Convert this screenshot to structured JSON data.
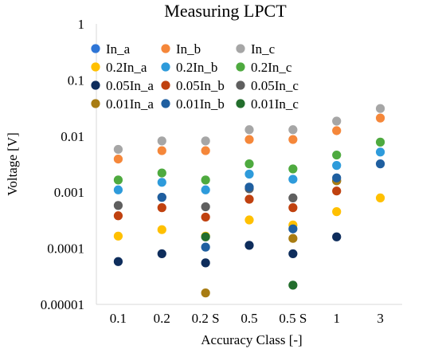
{
  "chart_data": {
    "type": "scatter",
    "title": "Measuring LPCT",
    "xlabel": "Accuracy Class [-]",
    "ylabel": "Voltage [V]",
    "y_scale": "log",
    "ylim": [
      1e-05,
      1
    ],
    "y_ticks": [
      "0.00001",
      "0.0001",
      "0.001",
      "0.01",
      "0.1",
      "1"
    ],
    "categories": [
      "0.1",
      "0.2",
      "0.2 S",
      "0.5",
      "0.5 S",
      "1",
      "3"
    ],
    "grid": false,
    "legend_position": "top-left",
    "series": [
      {
        "name": "In_a",
        "color": "#2E75D6",
        "values": [
          null,
          null,
          null,
          null,
          null,
          null,
          null
        ]
      },
      {
        "name": "In_b",
        "color": "#F5873A",
        "values": [
          0.0039,
          0.0055,
          0.0055,
          0.0087,
          0.0087,
          0.0125,
          0.021
        ]
      },
      {
        "name": "In_c",
        "color": "#A6A6A6",
        "values": [
          0.0058,
          0.0082,
          0.0082,
          0.013,
          0.013,
          0.0185,
          0.031
        ]
      },
      {
        "name": "0.2In_a",
        "color": "#FFC000",
        "values": [
          0.000165,
          0.000215,
          0.000165,
          0.00032,
          0.00026,
          0.00045,
          0.00079
        ]
      },
      {
        "name": "0.2In_b",
        "color": "#2E9BDB",
        "values": [
          0.0011,
          0.0015,
          0.0011,
          0.0021,
          0.0017,
          0.003,
          0.0052
        ]
      },
      {
        "name": "0.2In_c",
        "color": "#4EAA3F",
        "values": [
          0.00165,
          0.0022,
          0.00165,
          0.0032,
          0.0026,
          0.0046,
          0.0078
        ]
      },
      {
        "name": "0.05In_a",
        "color": "#0E2D5C",
        "values": [
          5.8e-05,
          8e-05,
          5.5e-05,
          0.000113,
          8e-05,
          0.00016,
          null
        ]
      },
      {
        "name": "0.05In_b",
        "color": "#C0410F",
        "values": [
          0.00038,
          0.00053,
          0.00036,
          0.00075,
          0.00053,
          0.00105,
          null
        ]
      },
      {
        "name": "0.05In_c",
        "color": "#5F5F5F",
        "values": [
          0.00058,
          0.00081,
          0.00055,
          0.00115,
          0.00079,
          0.0016,
          null
        ]
      },
      {
        "name": "0.01In_a",
        "color": "#A87C12",
        "values": [
          null,
          null,
          1.6e-05,
          null,
          0.00015,
          0.0016,
          null
        ]
      },
      {
        "name": "0.01In_b",
        "color": "#1F5FA0",
        "values": [
          null,
          0.00081,
          0.000105,
          0.00123,
          0.000222,
          0.0018,
          0.0032
        ]
      },
      {
        "name": "0.01In_c",
        "color": "#236E2D",
        "values": [
          null,
          null,
          0.00016,
          null,
          2.2e-05,
          null,
          null
        ]
      }
    ]
  }
}
